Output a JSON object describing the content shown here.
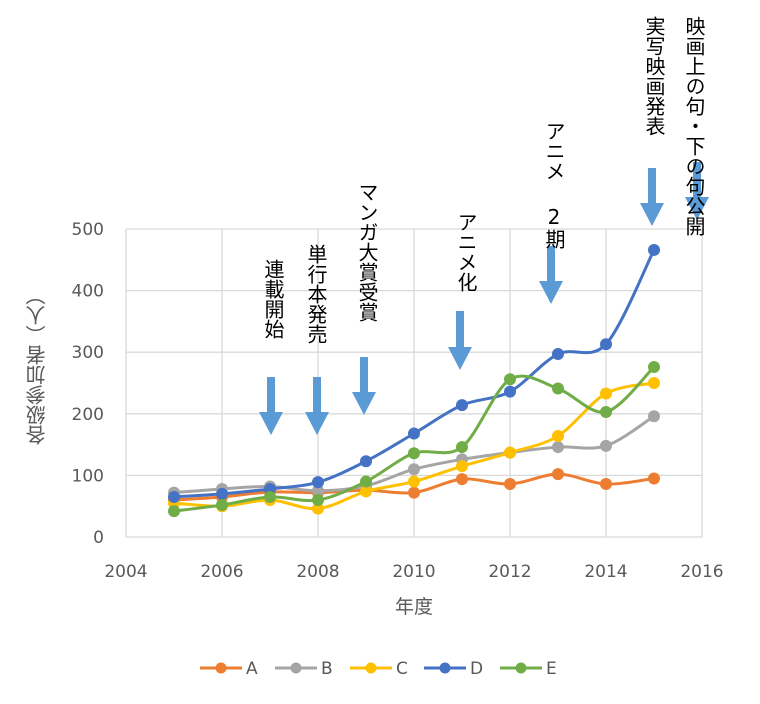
{
  "chart_data": {
    "type": "line",
    "title": "",
    "xlabel": "年度",
    "ylabel": "各級参加者（人）",
    "xlim": [
      2004,
      2016
    ],
    "ylim": [
      0,
      500
    ],
    "xticks": [
      2004,
      2006,
      2008,
      2010,
      2012,
      2014,
      2016
    ],
    "yticks": [
      0,
      100,
      200,
      300,
      400,
      500
    ],
    "grid": true,
    "legend_position": "bottom",
    "x": [
      2005,
      2006,
      2007,
      2008,
      2009,
      2010,
      2011,
      2012,
      2013,
      2014,
      2015
    ],
    "series": [
      {
        "name": "A",
        "color": "#ED7D31",
        "values": [
          60,
          65,
          73,
          72,
          76,
          72,
          94,
          86,
          102,
          86,
          95
        ]
      },
      {
        "name": "B",
        "color": "#A5A5A5",
        "values": [
          72,
          78,
          82,
          75,
          83,
          110,
          126,
          137,
          146,
          148,
          196
        ]
      },
      {
        "name": "C",
        "color": "#FFC000",
        "values": [
          55,
          50,
          60,
          46,
          74,
          90,
          115,
          137,
          164,
          233,
          250
        ]
      },
      {
        "name": "D",
        "color": "#4472C4",
        "values": [
          65,
          70,
          78,
          89,
          123,
          168,
          214,
          236,
          297,
          313,
          466
        ]
      },
      {
        "name": "E",
        "color": "#70AD47",
        "values": [
          42,
          52,
          65,
          60,
          90,
          136,
          146,
          256,
          241,
          203,
          276
        ]
      }
    ],
    "annotations": [
      {
        "text": "連載開始",
        "year": 2007
      },
      {
        "text": "単行本発売",
        "year": 2008
      },
      {
        "text": "マンガ大賞受賞",
        "year": 2009
      },
      {
        "text": "アニメ化",
        "year": 2011
      },
      {
        "text": "アニメ 2期",
        "year": 2013
      },
      {
        "text": "実写映画発表",
        "year": 2015
      },
      {
        "text": "映画上の句・下の句公開",
        "year": 2016
      }
    ],
    "arrow_color": "#5B9BD5",
    "grid_color": "#D9D9D9"
  }
}
